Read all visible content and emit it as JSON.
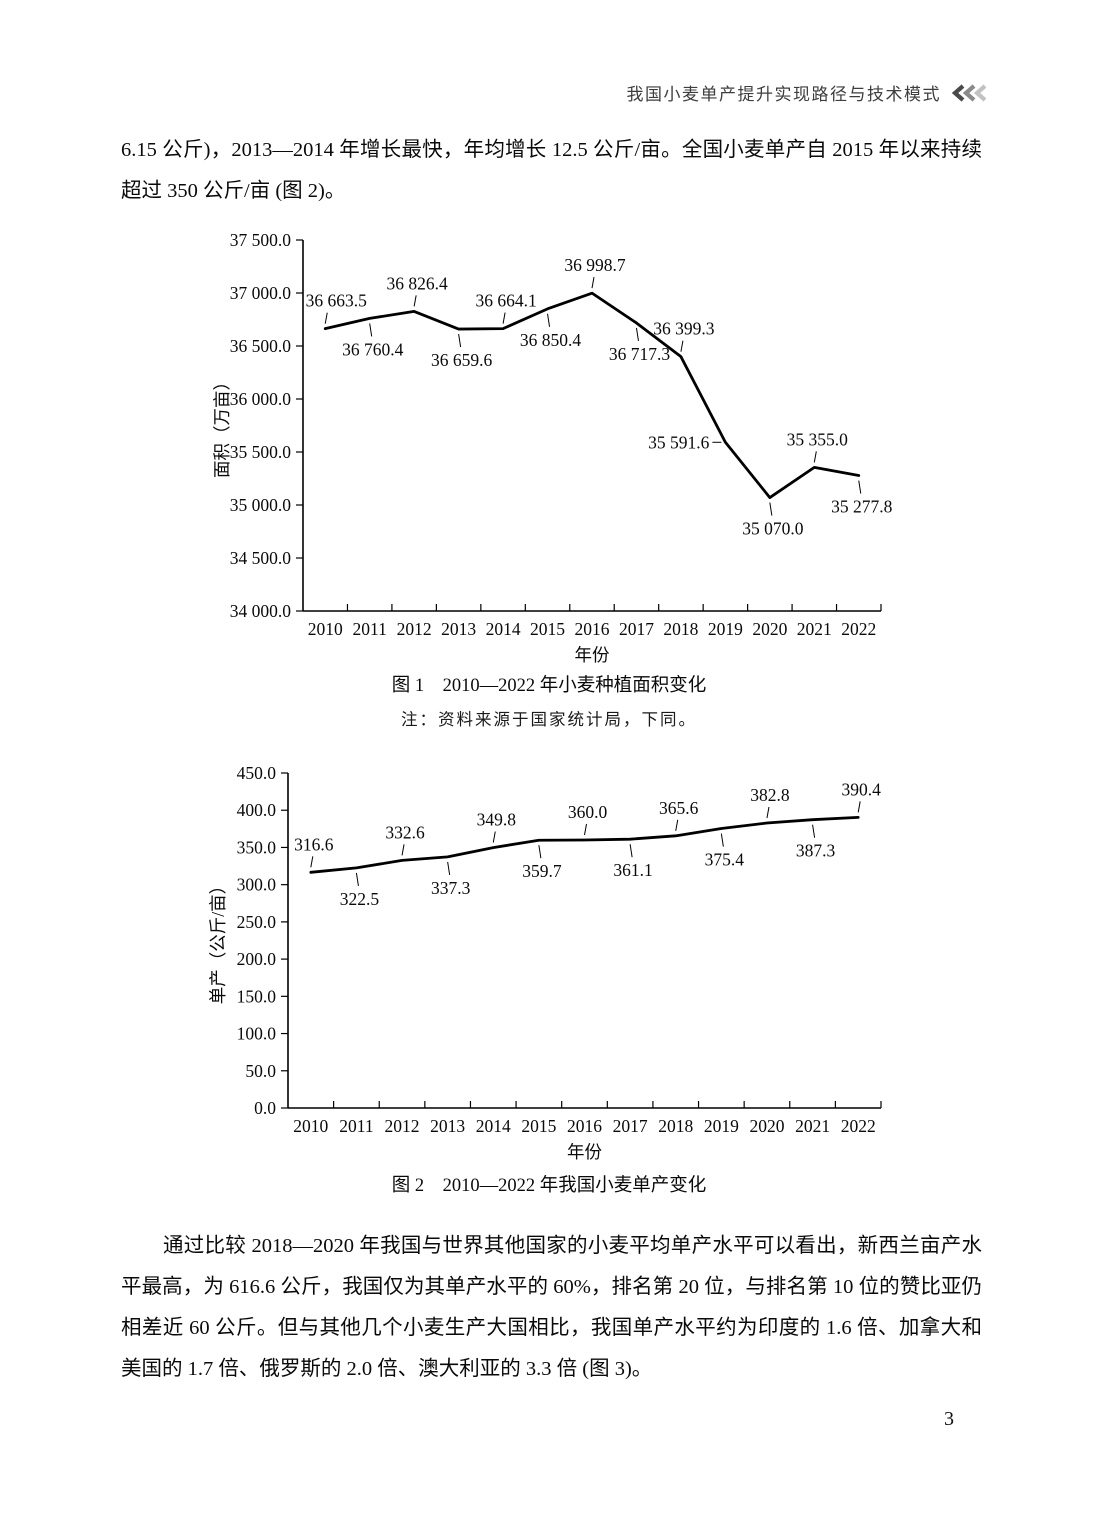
{
  "header": {
    "title": "我国小麦单产提升实现路径与技术模式",
    "icon": "triple-left-chevron",
    "icon_colors": [
      "#4a4a4a",
      "#8a8a8a",
      "#c2c2c2"
    ]
  },
  "paragraphs": {
    "intro": "6.15 公斤)，2013—2014 年增长最快，年均增长 12.5 公斤/亩。全国小麦单产自 2015 年以来持续超过 350 公斤/亩 (图 2)。",
    "comparison": "通过比较 2018—2020 年我国与世界其他国家的小麦平均单产水平可以看出，新西兰亩产水平最高，为 616.6 公斤，我国仅为其单产水平的 60%，排名第 20 位，与排名第 10 位的赞比亚仍相差近 60 公斤。但与其他几个小麦生产大国相比，我国单产水平约为印度的 1.6 倍、加拿大和美国的 1.7 倍、俄罗斯的 2.0 倍、澳大利亚的 3.3 倍 (图 3)。"
  },
  "figure1": {
    "caption": "图 1　2010—2022 年小麦种植面积变化",
    "note": "注：资料来源于国家统计局，下同。"
  },
  "figure2": {
    "caption": "图 2　2010—2022 年我国小麦单产变化"
  },
  "page_number": "3",
  "chart_data": [
    {
      "type": "line",
      "title": "图 1 2010—2022 年小麦种植面积变化",
      "xlabel": "年份",
      "ylabel": "面积（万亩）",
      "categories": [
        "2010",
        "2011",
        "2012",
        "2013",
        "2014",
        "2015",
        "2016",
        "2017",
        "2018",
        "2019",
        "2020",
        "2021",
        "2022"
      ],
      "values": [
        36663.5,
        36760.4,
        36826.4,
        36659.6,
        36664.1,
        36850.4,
        36998.7,
        36717.3,
        36399.3,
        35591.6,
        35070.0,
        35355.0,
        35277.8
      ],
      "point_labels": [
        "36 663.5",
        "36 760.4",
        "36 826.4",
        "36 659.6",
        "36 664.1",
        "36 850.4",
        "36 998.7",
        "36 717.3",
        "36 399.3",
        "35 591.6",
        "35 070.0",
        "35 355.0",
        "35 277.8"
      ],
      "label_positions": [
        "above",
        "below",
        "above",
        "below",
        "above",
        "below",
        "above",
        "below",
        "above",
        "left",
        "below",
        "above",
        "below"
      ],
      "ylim": [
        34000,
        37500
      ],
      "ystep": 500,
      "ytick_labels": [
        "34 000.0",
        "34 500.0",
        "35 000.0",
        "35 500.0",
        "36 000.0",
        "36 500.0",
        "37 000.0",
        "37 500.0"
      ],
      "grid": false,
      "legend": "none",
      "line_color": "#000000"
    },
    {
      "type": "line",
      "title": "图 2 2010—2022 年我国小麦单产变化",
      "xlabel": "年份",
      "ylabel": "单产（公斤/亩）",
      "categories": [
        "2010",
        "2011",
        "2012",
        "2013",
        "2014",
        "2015",
        "2016",
        "2017",
        "2018",
        "2019",
        "2020",
        "2021",
        "2022"
      ],
      "values": [
        316.6,
        322.5,
        332.6,
        337.3,
        349.8,
        359.7,
        360.0,
        361.1,
        365.6,
        375.4,
        382.8,
        387.3,
        390.4
      ],
      "point_labels": [
        "316.6",
        "322.5",
        "332.6",
        "337.3",
        "349.8",
        "359.7",
        "360.0",
        "361.1",
        "365.6",
        "375.4",
        "382.8",
        "387.3",
        "390.4"
      ],
      "label_positions": [
        "above",
        "below",
        "above",
        "below",
        "above",
        "below",
        "above",
        "below",
        "above",
        "below",
        "above",
        "below",
        "above"
      ],
      "ylim": [
        0,
        450
      ],
      "ystep": 50,
      "ytick_labels": [
        "0.0",
        "50.0",
        "100.0",
        "150.0",
        "200.0",
        "250.0",
        "300.0",
        "350.0",
        "400.0",
        "450.0"
      ],
      "grid": false,
      "legend": "none",
      "line_color": "#000000"
    }
  ]
}
